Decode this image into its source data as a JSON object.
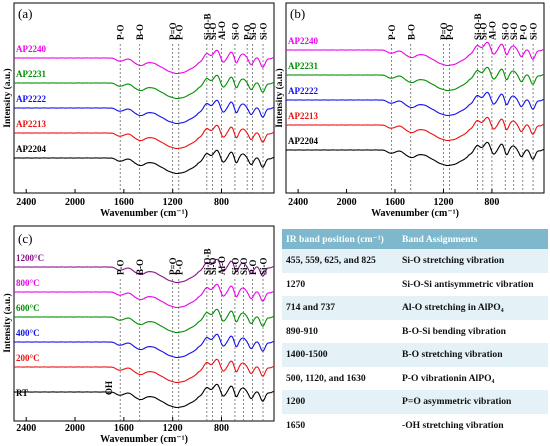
{
  "chart_data": [
    {
      "type": "line",
      "panel_label": "(a)",
      "xlabel": "Wavenumber (cm⁻¹)",
      "ylabel": "Intensity (a.u.)",
      "xlim": [
        2500,
        370
      ],
      "x_ticks": [
        "2400",
        "2000",
        "1600",
        "1200",
        "800"
      ],
      "x_tick_values": [
        2400,
        2000,
        1600,
        1200,
        800
      ],
      "peak_labels": [
        {
          "label": "P-O",
          "x": 1630
        },
        {
          "label": "B-O",
          "x": 1470
        },
        {
          "label": "P=O",
          "x": 1200
        },
        {
          "label": "P-O",
          "x": 1150
        },
        {
          "label": "Si-O-B",
          "x": 920
        },
        {
          "label": "Si-O",
          "x": 875
        },
        {
          "label": "Al-O",
          "x": 800
        },
        {
          "label": "Si-O",
          "x": 690
        },
        {
          "label": "P-O",
          "x": 590
        },
        {
          "label": "Si-O",
          "x": 545
        },
        {
          "label": "Si-O",
          "x": 460
        }
      ],
      "series": [
        {
          "name": "AP2240",
          "color": "#ee00ee",
          "offset": 4,
          "label_above": true
        },
        {
          "name": "AP2231",
          "color": "#009000",
          "offset": 3,
          "label_above": true
        },
        {
          "name": "AP2222",
          "color": "#1010ee",
          "offset": 2,
          "label_above": true
        },
        {
          "name": "AP2213",
          "color": "#ee1010",
          "offset": 1,
          "label_above": true
        },
        {
          "name": "AP2204",
          "color": "#000000",
          "offset": 0,
          "label_above": true
        }
      ]
    },
    {
      "type": "line",
      "panel_label": "(b)",
      "xlabel": "Wavenumber (cm⁻¹)",
      "ylabel": "Intensity (a.u.)",
      "xlim": [
        2500,
        370
      ],
      "x_ticks": [
        "2400",
        "2000",
        "1600",
        "1200",
        "800"
      ],
      "x_tick_values": [
        2400,
        2000,
        1600,
        1200,
        800
      ],
      "peak_labels": [
        {
          "label": "P-O",
          "x": 1630
        },
        {
          "label": "B-O",
          "x": 1470
        },
        {
          "label": "P=O",
          "x": 1200
        },
        {
          "label": "P-O",
          "x": 1150
        },
        {
          "label": "Si-O-B",
          "x": 920
        },
        {
          "label": "Si-O",
          "x": 875
        },
        {
          "label": "Al-O",
          "x": 800
        },
        {
          "label": "Si-O",
          "x": 690
        },
        {
          "label": "Si-O",
          "x": 620
        },
        {
          "label": "P-O",
          "x": 545
        },
        {
          "label": "Si-O",
          "x": 460
        }
      ],
      "series": [
        {
          "name": "AP2240",
          "color": "#ee00ee",
          "offset": 4,
          "label_above": true
        },
        {
          "name": "AP2231",
          "color": "#009000",
          "offset": 3,
          "label_above": true
        },
        {
          "name": "AP2222",
          "color": "#1010ee",
          "offset": 2,
          "label_above": true
        },
        {
          "name": "AP2213",
          "color": "#ee1010",
          "offset": 1,
          "label_above": true
        },
        {
          "name": "AP2204",
          "color": "#000000",
          "offset": 0,
          "label_above": true
        }
      ]
    },
    {
      "type": "line",
      "panel_label": "(c)",
      "xlabel": "Wavenumber (cm⁻¹)",
      "ylabel": "Intensity (a.u.)",
      "xlim": [
        2500,
        370
      ],
      "x_ticks": [
        "2400",
        "2000",
        "1600",
        "1200",
        "800"
      ],
      "x_tick_values": [
        2400,
        2000,
        1600,
        1200,
        800
      ],
      "peak_labels": [
        {
          "label": "P-O",
          "x": 1630
        },
        {
          "label": "B-O",
          "x": 1470
        },
        {
          "label": "P=O",
          "x": 1200
        },
        {
          "label": "P-O",
          "x": 1150
        },
        {
          "label": "Si-O-B",
          "x": 920
        },
        {
          "label": "Si-O",
          "x": 875
        },
        {
          "label": "Al-O",
          "x": 800
        },
        {
          "label": "Si-O",
          "x": 690
        },
        {
          "label": "Si-O",
          "x": 620
        },
        {
          "label": "P-O",
          "x": 545
        },
        {
          "label": "Si-O",
          "x": 460
        }
      ],
      "annotations": [
        {
          "label": "OH",
          "x": 1650
        }
      ],
      "series": [
        {
          "name": "1200°C",
          "color": "#881188",
          "offset": 6,
          "label_above": true
        },
        {
          "name": "800°C",
          "color": "#ee00ee",
          "offset": 5,
          "label_above": true
        },
        {
          "name": "600°C",
          "color": "#009000",
          "offset": 4,
          "label_above": true
        },
        {
          "name": "400°C",
          "color": "#1010ee",
          "offset": 3,
          "label_above": true
        },
        {
          "name": "200°C",
          "color": "#ee1010",
          "offset": 2,
          "label_above": true
        },
        {
          "name": "RT",
          "color": "#000000",
          "offset": 1,
          "label_above": false
        }
      ]
    },
    {
      "type": "table",
      "columns": [
        "IR band position (cm⁻¹)",
        "Band Assignments"
      ],
      "rows": [
        [
          "455, 559, 625, and 825",
          "Si-O stretching vibration"
        ],
        [
          "1270",
          "Si-O-Si antisymmetric vibration"
        ],
        [
          "714 and 737",
          "Al-O stretching in AlPO₄"
        ],
        [
          "890-910",
          "B-O-Si bending vibration"
        ],
        [
          "1400-1500",
          "B-O stretching vibration"
        ],
        [
          "500, 1120, and 1630",
          "P-O vibrationin AlPO₄"
        ],
        [
          "1200",
          "P=O asymmetric vibration"
        ],
        [
          "1650",
          "-OH stretching vibration"
        ]
      ]
    }
  ]
}
